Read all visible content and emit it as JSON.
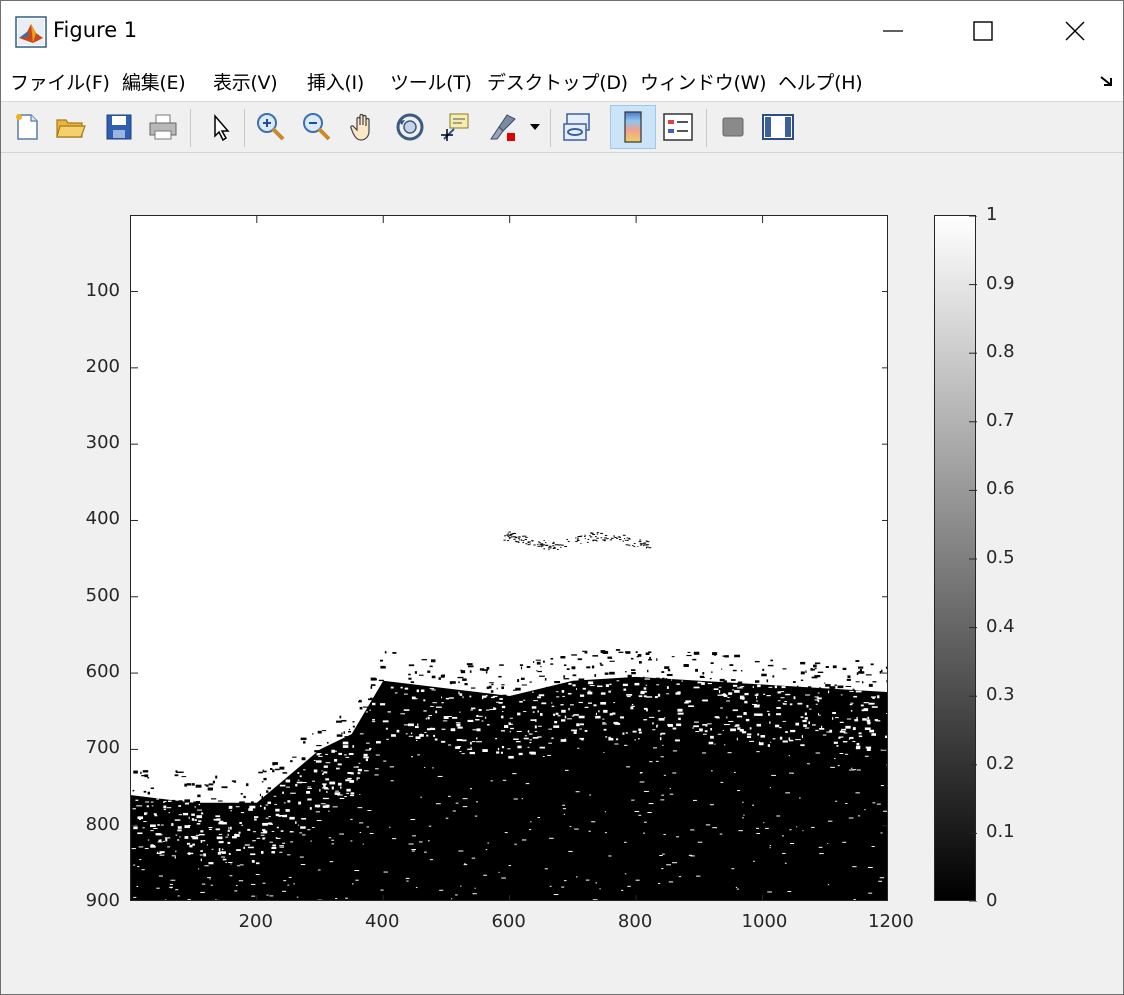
{
  "window": {
    "title": "Figure 1",
    "icon": "matlab-icon",
    "controls": [
      "minimize-icon",
      "maximize-icon",
      "close-icon"
    ]
  },
  "menu": {
    "items": [
      {
        "label": "ファイル(F)"
      },
      {
        "label": "編集(E)"
      },
      {
        "label": "表示(V)"
      },
      {
        "label": "挿入(I)"
      },
      {
        "label": "ツール(T)"
      },
      {
        "label": "デスクトップ(D)"
      },
      {
        "label": "ウィンドウ(W)"
      },
      {
        "label": "ヘルプ(H)"
      }
    ]
  },
  "toolbar": {
    "buttons": [
      {
        "name": "new-figure-icon"
      },
      {
        "name": "open-file-icon"
      },
      {
        "name": "save-icon"
      },
      {
        "name": "print-icon"
      },
      {
        "name": "edit-plot-arrow-icon"
      },
      {
        "name": "zoom-in-icon"
      },
      {
        "name": "zoom-out-icon"
      },
      {
        "name": "pan-hand-icon"
      },
      {
        "name": "rotate-3d-icon"
      },
      {
        "name": "data-cursor-icon"
      },
      {
        "name": "brush-icon"
      },
      {
        "name": "link-plot-icon"
      },
      {
        "name": "colorbar-icon",
        "active": true
      },
      {
        "name": "legend-icon"
      },
      {
        "name": "hide-plot-tools-icon"
      },
      {
        "name": "show-plot-tools-icon"
      }
    ]
  },
  "chart_data": {
    "type": "heatmap",
    "image_type": "binary image (0 = black, 1 = white)",
    "x_ticks": [
      200,
      400,
      600,
      800,
      1000,
      1200
    ],
    "y_ticks": [
      100,
      200,
      300,
      400,
      500,
      600,
      700,
      800,
      900
    ],
    "xlim": [
      1,
      1200
    ],
    "ylim": [
      1,
      900
    ],
    "y_direction": "reversed",
    "colormap": "gray",
    "colorbar": {
      "ticks": [
        "0",
        "0.1",
        "0.2",
        "0.3",
        "0.4",
        "0.5",
        "0.6",
        "0.7",
        "0.8",
        "0.9",
        "1"
      ],
      "range": [
        0,
        1
      ]
    },
    "boundary": {
      "description": "white region above, black region below",
      "x": [
        1,
        100,
        200,
        300,
        350,
        400,
        500,
        600,
        700,
        800,
        900,
        1000,
        1100,
        1200
      ],
      "y": [
        760,
        770,
        770,
        700,
        680,
        610,
        620,
        630,
        610,
        605,
        610,
        615,
        620,
        625
      ]
    }
  }
}
